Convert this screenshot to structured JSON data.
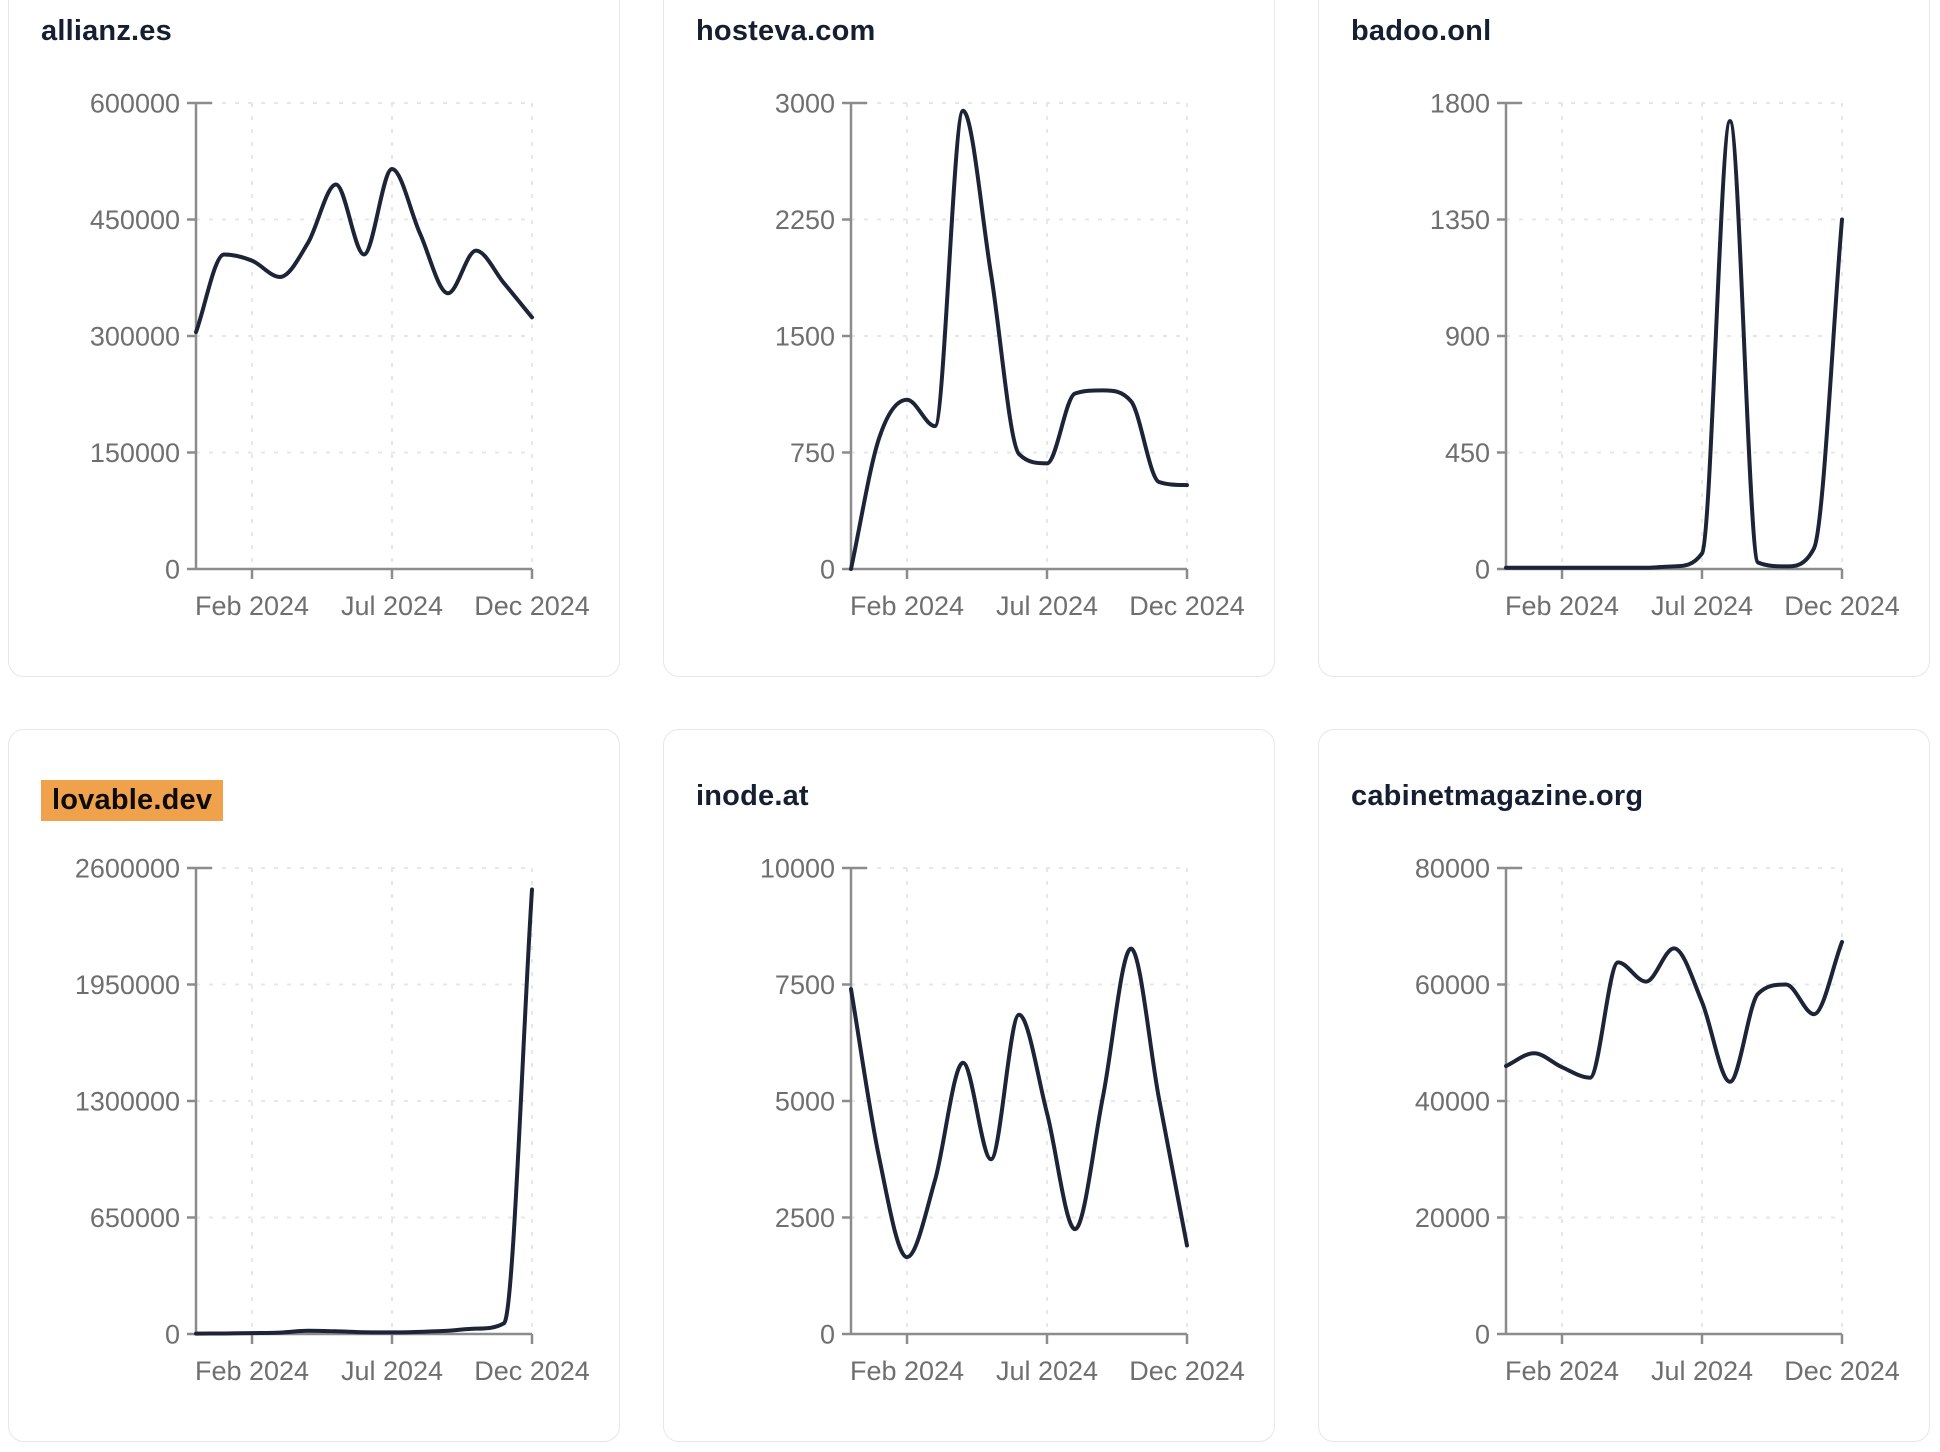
{
  "page": {
    "background": "#ffffff"
  },
  "styles": {
    "line_color": "#1d2438",
    "axis_color": "#8c8c8c",
    "tick_label_color": "#6f6f6f",
    "title_color": "#161e32",
    "grid_color": "#e7e7e7",
    "card_border_color": "#e4e7ee",
    "card_bg_color": "#ffffff",
    "highlight_bg_color": "#f0a14c",
    "highlight_text_color": "#0b0b0b"
  },
  "chart_data": [
    {
      "type": "line",
      "title": "allianz.es",
      "highlighted": false,
      "x_samples_monthly": [
        "Dec 2023",
        "Jan 2024",
        "Feb 2024",
        "Mar 2024",
        "Apr 2024",
        "May 2024",
        "Jun 2024",
        "Jul 2024",
        "Aug 2024",
        "Sep 2024",
        "Oct 2024",
        "Nov 2024",
        "Dec 2024"
      ],
      "values": [
        305000,
        405000,
        397000,
        376000,
        420000,
        495000,
        405000,
        515000,
        432000,
        355000,
        410000,
        368000,
        324000
      ],
      "y_ticks": [
        0,
        150000,
        300000,
        450000,
        600000
      ],
      "ylim": [
        0,
        600000
      ],
      "x_tick_labels": [
        "Feb 2024",
        "Jul 2024",
        "Dec 2024"
      ],
      "x_tick_positions": [
        0.1667,
        0.5833,
        1.0
      ],
      "grid": true,
      "legend": "none"
    },
    {
      "type": "line",
      "title": "hosteva.com",
      "highlighted": false,
      "x_samples_monthly": [
        "Dec 2023",
        "Jan 2024",
        "Feb 2024",
        "Mar 2024",
        "Apr 2024",
        "May 2024",
        "Jun 2024",
        "Jul 2024",
        "Aug 2024",
        "Sep 2024",
        "Oct 2024",
        "Nov 2024",
        "Dec 2024"
      ],
      "values": [
        0,
        840,
        1090,
        920,
        2950,
        1900,
        740,
        680,
        1130,
        1150,
        1080,
        560,
        540
      ],
      "y_ticks": [
        0,
        750,
        1500,
        2250,
        3000
      ],
      "ylim": [
        0,
        3000
      ],
      "x_tick_labels": [
        "Feb 2024",
        "Jul 2024",
        "Dec 2024"
      ],
      "x_tick_positions": [
        0.1667,
        0.5833,
        1.0
      ],
      "grid": true,
      "legend": "none"
    },
    {
      "type": "line",
      "title": "badoo.onl",
      "highlighted": false,
      "x_samples_monthly": [
        "Dec 2023",
        "Jan 2024",
        "Feb 2024",
        "Mar 2024",
        "Apr 2024",
        "May 2024",
        "Jun 2024",
        "Jul 2024",
        "Aug 2024",
        "Sep 2024",
        "Oct 2024",
        "Nov 2024",
        "Dec 2024"
      ],
      "values": [
        5,
        5,
        5,
        5,
        5,
        5,
        10,
        60,
        1730,
        25,
        10,
        80,
        1350
      ],
      "y_ticks": [
        0,
        450,
        900,
        1350,
        1800
      ],
      "ylim": [
        0,
        1800
      ],
      "x_tick_labels": [
        "Feb 2024",
        "Jul 2024",
        "Dec 2024"
      ],
      "x_tick_positions": [
        0.1667,
        0.5833,
        1.0
      ],
      "grid": true,
      "legend": "none"
    },
    {
      "type": "line",
      "title": "lovable.dev",
      "highlighted": true,
      "x_samples_monthly": [
        "Dec 2023",
        "Jan 2024",
        "Feb 2024",
        "Mar 2024",
        "Apr 2024",
        "May 2024",
        "Jun 2024",
        "Jul 2024",
        "Aug 2024",
        "Sep 2024",
        "Oct 2024",
        "Nov 2024",
        "Dec 2024"
      ],
      "values": [
        2000,
        3000,
        5000,
        8000,
        18000,
        15000,
        10000,
        9000,
        12000,
        18000,
        30000,
        60000,
        2480000
      ],
      "y_ticks": [
        0,
        650000,
        1300000,
        1950000,
        2600000
      ],
      "ylim": [
        0,
        2600000
      ],
      "x_tick_labels": [
        "Feb 2024",
        "Jul 2024",
        "Dec 2024"
      ],
      "x_tick_positions": [
        0.1667,
        0.5833,
        1.0
      ],
      "grid": true,
      "legend": "none"
    },
    {
      "type": "line",
      "title": "inode.at",
      "highlighted": false,
      "x_samples_monthly": [
        "Dec 2023",
        "Jan 2024",
        "Feb 2024",
        "Mar 2024",
        "Apr 2024",
        "May 2024",
        "Jun 2024",
        "Jul 2024",
        "Aug 2024",
        "Sep 2024",
        "Oct 2024",
        "Nov 2024",
        "Dec 2024"
      ],
      "values": [
        7400,
        3800,
        1650,
        3300,
        5820,
        3750,
        6850,
        4740,
        2250,
        5100,
        8270,
        5050,
        1900
      ],
      "y_ticks": [
        0,
        2500,
        5000,
        7500,
        10000
      ],
      "ylim": [
        0,
        10000
      ],
      "x_tick_labels": [
        "Feb 2024",
        "Jul 2024",
        "Dec 2024"
      ],
      "x_tick_positions": [
        0.1667,
        0.5833,
        1.0
      ],
      "grid": true,
      "legend": "none"
    },
    {
      "type": "line",
      "title": "cabinetmagazine.org",
      "highlighted": false,
      "x_samples_monthly": [
        "Dec 2023",
        "Jan 2024",
        "Feb 2024",
        "Mar 2024",
        "Apr 2024",
        "May 2024",
        "Jun 2024",
        "Jul 2024",
        "Aug 2024",
        "Sep 2024",
        "Oct 2024",
        "Nov 2024",
        "Dec 2024"
      ],
      "values": [
        46000,
        48200,
        45800,
        44000,
        63800,
        60500,
        66200,
        57000,
        43300,
        58400,
        60000,
        54900,
        67300
      ],
      "y_ticks": [
        0,
        20000,
        40000,
        60000,
        80000
      ],
      "ylim": [
        0,
        80000
      ],
      "x_tick_labels": [
        "Feb 2024",
        "Jul 2024",
        "Dec 2024"
      ],
      "x_tick_positions": [
        0.1667,
        0.5833,
        1.0
      ],
      "grid": true,
      "legend": "none"
    }
  ]
}
